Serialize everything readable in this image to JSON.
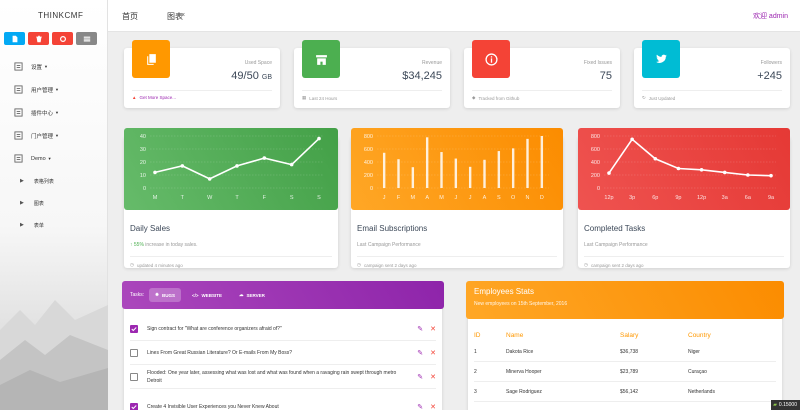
{
  "app": {
    "brand": "THINKCMF",
    "user_link": "欢迎 admin"
  },
  "topbar": {
    "tabs": [
      "首页",
      "图表"
    ],
    "close_glyph": "×"
  },
  "colors": {
    "accent": "#9c27b0",
    "green": "#4caf50",
    "orange": "#ff9800",
    "red": "#f44336",
    "cyan": "#00bcd4",
    "blue": "#03a9f4"
  },
  "quick_buttons": [
    {
      "icon": "file-icon",
      "color": "#03a9f4"
    },
    {
      "icon": "trash-icon",
      "color": "#f44336"
    },
    {
      "icon": "recycle-icon",
      "color": "#f44336"
    },
    {
      "icon": "list-icon",
      "color": "#888888"
    }
  ],
  "sidebar": {
    "items": [
      {
        "label": "设置",
        "icon": "gear-icon"
      },
      {
        "label": "用户管理",
        "icon": "users-icon"
      },
      {
        "label": "插件中心",
        "icon": "plugin-icon"
      },
      {
        "label": "门户管理",
        "icon": "portal-icon"
      },
      {
        "label": "Demo",
        "icon": "demo-icon"
      }
    ],
    "subitems": [
      "表格列表",
      "图表",
      "表单"
    ]
  },
  "stats": [
    {
      "category": "Used Space",
      "value": "49/50",
      "unit": "GB",
      "footer": "Get More Space...",
      "icon": "copy-icon",
      "color": "#ff9800"
    },
    {
      "category": "Revenue",
      "value": "$34,245",
      "unit": "",
      "footer": "Last 24 Hours",
      "icon": "store-icon",
      "color": "#4caf50"
    },
    {
      "category": "Fixed Issues",
      "value": "75",
      "unit": "",
      "footer": "Tracked from Github",
      "icon": "info-icon",
      "color": "#f44336"
    },
    {
      "category": "Followers",
      "value": "+245",
      "unit": "",
      "footer": "Just Updated",
      "icon": "twitter-icon",
      "color": "#00bcd4"
    }
  ],
  "charts": [
    {
      "title": "Daily Sales",
      "desc_prefix": "↑ 55%",
      "desc": " increase in today sales.",
      "footer": "updated 4 minutes ago",
      "color": "#4caf50"
    },
    {
      "title": "Email Subscriptions",
      "desc_prefix": "",
      "desc": "Last Campaign Performance",
      "footer": "campaign sent 2 days ago",
      "color": "#ff9800"
    },
    {
      "title": "Completed Tasks",
      "desc_prefix": "",
      "desc": "Last Campaign Performance",
      "footer": "campaign sent 2 days ago",
      "color": "#f44336"
    }
  ],
  "chart_data": [
    {
      "type": "line",
      "categories": [
        "M",
        "T",
        "W",
        "T",
        "F",
        "S",
        "S"
      ],
      "values": [
        12,
        17,
        7,
        17,
        23,
        18,
        38
      ],
      "ylim": [
        0,
        40
      ],
      "yticks": [
        0,
        10,
        20,
        30,
        40
      ],
      "grid": true
    },
    {
      "type": "bar",
      "categories": [
        "J",
        "F",
        "M",
        "A",
        "M",
        "J",
        "J",
        "A",
        "S",
        "O",
        "N",
        "D"
      ],
      "values": [
        542,
        443,
        320,
        780,
        553,
        453,
        326,
        434,
        568,
        610,
        756,
        895
      ],
      "ylim": [
        0,
        800
      ],
      "yticks": [
        0,
        200,
        400,
        600,
        800
      ],
      "grid": true
    },
    {
      "type": "line",
      "categories": [
        "12p",
        "3p",
        "6p",
        "9p",
        "12p",
        "3a",
        "6a",
        "9a"
      ],
      "values": [
        230,
        750,
        450,
        300,
        280,
        240,
        200,
        190
      ],
      "ylim": [
        0,
        800
      ],
      "yticks": [
        0,
        200,
        400,
        600,
        800
      ],
      "grid": true
    }
  ],
  "tasks": {
    "label": "Tasks:",
    "tabs": [
      {
        "label": "BUGS",
        "icon": "bug-icon"
      },
      {
        "label": "WEBSITE",
        "icon": "code-icon"
      },
      {
        "label": "SERVER",
        "icon": "cloud-icon"
      }
    ],
    "items": [
      {
        "text": "Sign contract for \"What are conference organizers afraid of?\"",
        "checked": true
      },
      {
        "text": "Lines From Great Russian Literature? Or E-mails From My Boss?",
        "checked": false
      },
      {
        "text": "Flooded: One year later, assessing what was lost and what was found when a ravaging rain swept through metro Detroit",
        "checked": false
      },
      {
        "text": "Create 4 Invisible User Experiences you Never Knew About",
        "checked": true
      }
    ]
  },
  "employees": {
    "title": "Employees Stats",
    "subtitle": "New employees on 15th September, 2016",
    "headers": [
      "ID",
      "Name",
      "Salary",
      "Country"
    ],
    "rows": [
      [
        "1",
        "Dakota Rice",
        "$36,738",
        "Niger"
      ],
      [
        "2",
        "Minerva Hooper",
        "$23,789",
        "Curaçao"
      ],
      [
        "3",
        "Sage Rodriguez",
        "$56,142",
        "Netherlands"
      ]
    ]
  },
  "badge": {
    "text": "0.15000"
  }
}
